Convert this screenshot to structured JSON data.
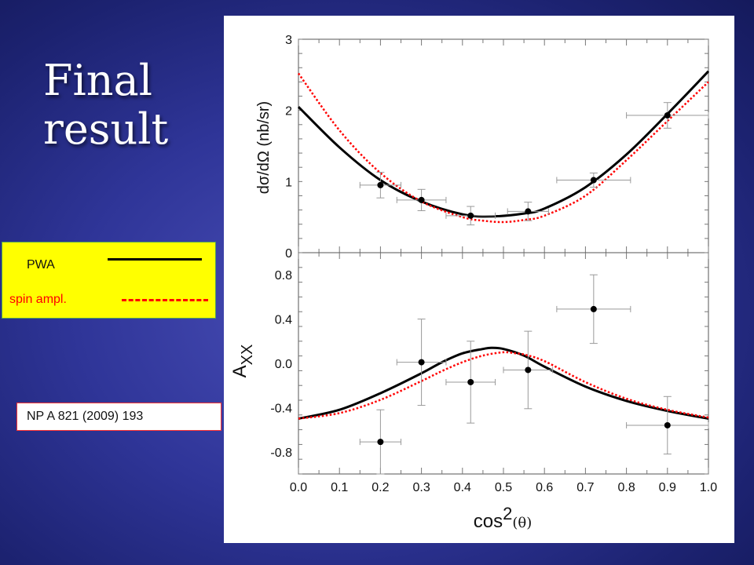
{
  "slide": {
    "title_line1": "Final",
    "title_line2": "result"
  },
  "legend": {
    "pwa_label": "PWA",
    "spin_label": "spin ampl.",
    "pwa_color": "#000000",
    "spin_color": "#ff0000"
  },
  "reference": "NP A 821 (2009) 193",
  "chart_data": [
    {
      "type": "line",
      "name_ref": "cross-section",
      "ylabel": "dσ/dΩ (nb/sr)",
      "xlabel": "",
      "xlim": [
        0.0,
        1.0
      ],
      "ylim": [
        0,
        3
      ],
      "yticks": [
        0,
        1,
        2,
        3
      ],
      "data_points": [
        {
          "x": 0.2,
          "y": 0.95,
          "xerr": 0.05,
          "yerr": 0.18
        },
        {
          "x": 0.3,
          "y": 0.74,
          "xerr": 0.06,
          "yerr": 0.15
        },
        {
          "x": 0.42,
          "y": 0.52,
          "xerr": 0.06,
          "yerr": 0.13
        },
        {
          "x": 0.56,
          "y": 0.58,
          "xerr": 0.05,
          "yerr": 0.13
        },
        {
          "x": 0.72,
          "y": 1.02,
          "xerr": 0.09,
          "yerr": 0.1
        },
        {
          "x": 0.9,
          "y": 1.93,
          "xerr": 0.1,
          "yerr": 0.18
        }
      ],
      "series": [
        {
          "name": "PWA",
          "style": "solid",
          "color": "#000000",
          "x": [
            0.0,
            0.1,
            0.2,
            0.3,
            0.4,
            0.47,
            0.55,
            0.6,
            0.7,
            0.8,
            0.9,
            1.0
          ],
          "y": [
            2.05,
            1.48,
            1.02,
            0.72,
            0.54,
            0.51,
            0.55,
            0.62,
            0.92,
            1.38,
            1.95,
            2.55
          ]
        },
        {
          "name": "spin ampl.",
          "style": "dotted",
          "color": "#ff0000",
          "x": [
            0.0,
            0.1,
            0.2,
            0.3,
            0.4,
            0.45,
            0.5,
            0.55,
            0.6,
            0.7,
            0.8,
            0.9,
            1.0
          ],
          "y": [
            2.52,
            1.72,
            1.12,
            0.72,
            0.5,
            0.45,
            0.43,
            0.46,
            0.52,
            0.8,
            1.3,
            1.85,
            2.4
          ]
        }
      ]
    },
    {
      "type": "line",
      "name_ref": "analyzing-power",
      "ylabel_main": "A",
      "ylabel_sub": "XX",
      "xlabel_main": "cos",
      "xlabel_sup": "2",
      "xlabel_arg": "(θ)",
      "xlim": [
        0.0,
        1.0
      ],
      "ylim": [
        -1.0,
        1.0
      ],
      "xticks": [
        0.0,
        0.1,
        0.2,
        0.3,
        0.4,
        0.5,
        0.6,
        0.7,
        0.8,
        0.9,
        1.0
      ],
      "yticks": [
        -0.8,
        -0.4,
        0.0,
        0.4,
        0.8
      ],
      "ytick_labels": [
        "-0.8",
        "-0.4",
        "0.0",
        "0.4",
        "0.8"
      ],
      "data_points": [
        {
          "x": 0.2,
          "y": -0.71,
          "xerr": 0.05,
          "yerr": 0.29
        },
        {
          "x": 0.3,
          "y": 0.01,
          "xerr": 0.06,
          "yerr": 0.39
        },
        {
          "x": 0.42,
          "y": -0.17,
          "xerr": 0.06,
          "yerr": 0.37
        },
        {
          "x": 0.56,
          "y": -0.06,
          "xerr": 0.06,
          "yerr": 0.35
        },
        {
          "x": 0.72,
          "y": 0.49,
          "xerr": 0.09,
          "yerr": 0.31
        },
        {
          "x": 0.9,
          "y": -0.56,
          "xerr": 0.1,
          "yerr": 0.26
        }
      ],
      "series": [
        {
          "name": "PWA",
          "style": "solid",
          "color": "#000000",
          "x": [
            0.0,
            0.1,
            0.2,
            0.3,
            0.35,
            0.4,
            0.45,
            0.47,
            0.5,
            0.55,
            0.6,
            0.7,
            0.8,
            0.9,
            1.0
          ],
          "y": [
            -0.5,
            -0.42,
            -0.27,
            -0.09,
            0.01,
            0.09,
            0.13,
            0.14,
            0.13,
            0.07,
            -0.03,
            -0.21,
            -0.34,
            -0.43,
            -0.5
          ]
        },
        {
          "name": "spin ampl.",
          "style": "dotted",
          "color": "#ff0000",
          "x": [
            0.0,
            0.1,
            0.2,
            0.3,
            0.35,
            0.4,
            0.45,
            0.5,
            0.53,
            0.55,
            0.6,
            0.7,
            0.8,
            0.9,
            1.0
          ],
          "y": [
            -0.5,
            -0.45,
            -0.33,
            -0.16,
            -0.07,
            0.01,
            0.07,
            0.1,
            0.09,
            0.08,
            0.02,
            -0.17,
            -0.32,
            -0.42,
            -0.49
          ]
        }
      ]
    }
  ]
}
